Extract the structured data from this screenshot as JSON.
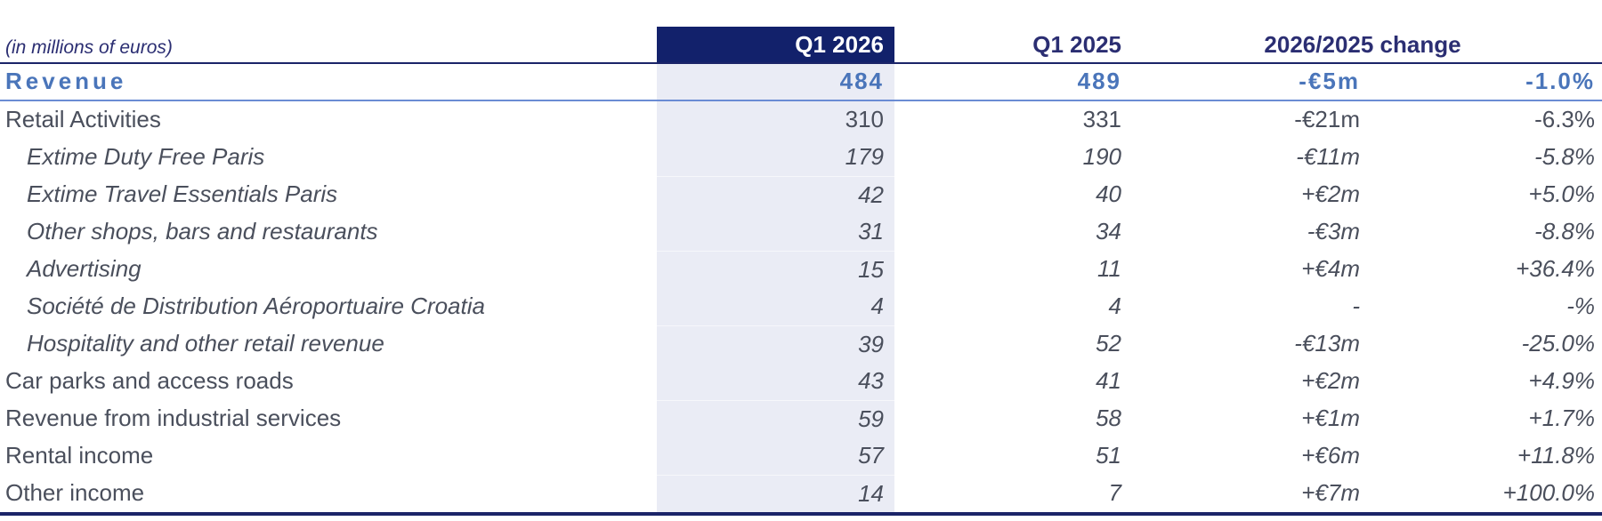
{
  "meta": {
    "unit_label": "(in millions of euros)"
  },
  "table": {
    "columns": {
      "q1_2026": "Q1 2026",
      "q1_2025": "Q1 2025",
      "change": "2026/2025 change"
    },
    "rows": [
      {
        "label": "Revenue",
        "q1_2026": "484",
        "q1_2025": "489",
        "change_m": "-€5m",
        "change_pct": "-1.0%",
        "style": "total"
      },
      {
        "label": "Retail Activities",
        "q1_2026": "310",
        "q1_2025": "331",
        "change_m": "-€21m",
        "change_pct": "-6.3%",
        "style": "group"
      },
      {
        "label": "Extime Duty Free Paris",
        "q1_2026": "179",
        "q1_2025": "190",
        "change_m": "-€11m",
        "change_pct": "-5.8%",
        "style": "sub"
      },
      {
        "label": "Extime Travel Essentials Paris",
        "q1_2026": "42",
        "q1_2025": "40",
        "change_m": "+€2m",
        "change_pct": "+5.0%",
        "style": "sub"
      },
      {
        "label": "Other shops, bars and restaurants",
        "q1_2026": "31",
        "q1_2025": "34",
        "change_m": "-€3m",
        "change_pct": "-8.8%",
        "style": "sub"
      },
      {
        "label": "Advertising",
        "q1_2026": "15",
        "q1_2025": "11",
        "change_m": "+€4m",
        "change_pct": "+36.4%",
        "style": "sub"
      },
      {
        "label": "Société de Distribution Aéroportuaire Croatia",
        "q1_2026": "4",
        "q1_2025": "4",
        "change_m": "-",
        "change_pct": "-%",
        "style": "sub"
      },
      {
        "label": "Hospitality and other retail revenue",
        "q1_2026": "39",
        "q1_2025": "52",
        "change_m": "-€13m",
        "change_pct": "-25.0%",
        "style": "sub"
      },
      {
        "label": "Car parks and access roads",
        "q1_2026": "43",
        "q1_2025": "41",
        "change_m": "+€2m",
        "change_pct": "+4.9%",
        "style": "item"
      },
      {
        "label": "Revenue from industrial services",
        "q1_2026": "59",
        "q1_2025": "58",
        "change_m": "+€1m",
        "change_pct": "+1.7%",
        "style": "item"
      },
      {
        "label": "Rental income",
        "q1_2026": "57",
        "q1_2025": "51",
        "change_m": "+€6m",
        "change_pct": "+11.8%",
        "style": "item"
      },
      {
        "label": "Other income",
        "q1_2026": "14",
        "q1_2025": "7",
        "change_m": "+€7m",
        "change_pct": "+100.0%",
        "style": "item"
      }
    ]
  },
  "colors": {
    "header_bg": "#12216B",
    "header_text": "#2B2E72",
    "accent_blue": "#4A75BA",
    "revenue_rule": "#6A8CD4",
    "table_rule": "#1B2468",
    "column_shade": "#EAECF5",
    "body_text": "#4A4F5C"
  }
}
